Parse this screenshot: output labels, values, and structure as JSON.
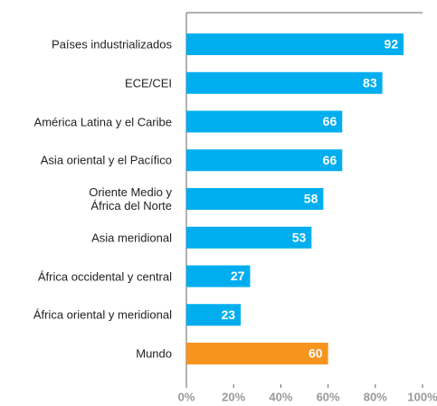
{
  "chart_data": {
    "type": "hbar",
    "categories": [
      "Países industrializados",
      "ECE/CEI",
      "América Latina y el Caribe",
      "Asia oriental y el Pacífico",
      "Oriente Medio y\nÁfrica del Norte",
      "Asia meridional",
      "África occidental y central",
      "África oriental y meridional",
      "Mundo"
    ],
    "values": [
      92,
      83,
      66,
      66,
      58,
      53,
      27,
      23,
      60
    ],
    "colors": [
      "#00aeef",
      "#00aeef",
      "#00aeef",
      "#00aeef",
      "#00aeef",
      "#00aeef",
      "#00aeef",
      "#00aeef",
      "#f7941d"
    ],
    "xlim": [
      0,
      100
    ],
    "xticks": [
      {
        "value": 0,
        "label": "0%"
      },
      {
        "value": 20,
        "label": "20%"
      },
      {
        "value": 40,
        "label": "40%"
      },
      {
        "value": 60,
        "label": "60%"
      },
      {
        "value": 80,
        "label": "80%"
      },
      {
        "value": 100,
        "label": "100%"
      }
    ]
  }
}
